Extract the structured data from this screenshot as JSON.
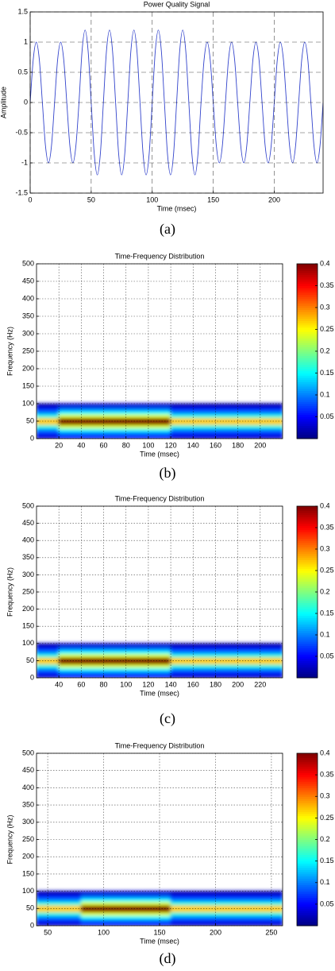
{
  "chart_data": [
    {
      "type": "line",
      "title": "Power Quality Signal",
      "x_label": "Time (msec)",
      "y_label": "Amplitude",
      "caption": "(a)",
      "color": "#3344cc",
      "grid": true,
      "xlim": [
        0,
        240
      ],
      "ylim": [
        -1.5,
        1.5
      ],
      "xticks": [
        0,
        50,
        100,
        150,
        200
      ],
      "yticks": [
        -1.5,
        -1,
        -0.5,
        0,
        0.5,
        1,
        1.5
      ],
      "x": [
        0,
        2.5,
        5,
        7.5,
        10,
        12.5,
        15,
        17.5,
        20,
        22.5,
        25,
        27.5,
        30,
        32.5,
        35,
        37.5,
        40,
        42.5,
        45,
        47.5,
        50,
        52.5,
        55,
        57.5,
        60,
        62.5,
        65,
        67.5,
        70,
        72.5,
        75,
        77.5,
        80,
        82.5,
        85,
        87.5,
        90,
        92.5,
        95,
        97.5,
        100,
        102.5,
        105,
        107.5,
        110,
        112.5,
        115,
        117.5,
        120,
        122.5,
        125,
        127.5,
        130,
        132.5,
        135,
        137.5,
        140,
        142.5,
        145,
        147.5,
        150,
        152.5,
        155,
        157.5,
        160,
        162.5,
        165,
        167.5,
        170,
        172.5,
        175,
        177.5,
        180,
        182.5,
        185,
        187.5,
        190,
        192.5,
        195,
        197.5,
        200,
        202.5,
        205,
        207.5,
        210,
        212.5,
        215,
        217.5,
        220,
        222.5,
        225,
        227.5,
        230,
        232.5,
        235,
        237.5,
        240
      ],
      "values": [
        0,
        0.71,
        1,
        0.71,
        0,
        -0.71,
        -1,
        -0.71,
        0,
        0.71,
        1,
        0.71,
        0,
        -0.71,
        -1,
        -0.71,
        0,
        0.85,
        1.2,
        0.85,
        0,
        -0.85,
        -1.2,
        -0.85,
        0,
        0.85,
        1.2,
        0.85,
        0,
        -0.85,
        -1.2,
        -0.85,
        0,
        0.85,
        1.2,
        0.85,
        0,
        -0.85,
        -1.2,
        -0.85,
        0,
        0.85,
        1.2,
        0.85,
        0,
        -0.85,
        -1.2,
        -0.85,
        0,
        0.85,
        1.2,
        0.85,
        0,
        -0.85,
        -1.2,
        -0.85,
        0,
        0.71,
        1,
        0.71,
        0,
        -0.71,
        -1,
        -0.71,
        0,
        0.71,
        1,
        0.71,
        0,
        -0.71,
        -1,
        -0.71,
        0,
        0.71,
        1,
        0.71,
        0,
        -0.71,
        -1,
        -0.71,
        0,
        0.71,
        1,
        0.71,
        0,
        -0.71,
        -1,
        -0.71,
        0,
        0.71,
        1,
        0.71,
        0,
        -0.71,
        -1,
        -0.71,
        0
      ]
    },
    {
      "type": "heatmap",
      "title": "Time-Frequency Distribution",
      "x_label": "Time (msec)",
      "y_label": "Frequency (Hz)",
      "caption": "(b)",
      "grid": true,
      "xlim": [
        0,
        220
      ],
      "ylim": [
        0,
        500
      ],
      "xticks": [
        20,
        40,
        60,
        80,
        100,
        120,
        140,
        160,
        180,
        200
      ],
      "yticks": [
        0,
        50,
        100,
        150,
        200,
        250,
        300,
        350,
        400,
        450,
        500
      ],
      "clim": [
        0,
        0.4
      ],
      "cticks": [
        0.05,
        0.1,
        0.15,
        0.2,
        0.25,
        0.3,
        0.35,
        0.4
      ],
      "xbins": [
        0,
        20,
        40,
        60,
        80,
        100,
        120,
        140,
        160,
        180,
        200,
        220
      ],
      "ybins": [
        0,
        10,
        20,
        30,
        40,
        50,
        60,
        70,
        80,
        90,
        100
      ],
      "z": [
        [
          0.03,
          0.05,
          0.05,
          0.05,
          0.05,
          0.05,
          0.03,
          0.03,
          0.03,
          0.03,
          0.03
        ],
        [
          0.06,
          0.09,
          0.09,
          0.09,
          0.09,
          0.09,
          0.06,
          0.06,
          0.06,
          0.06,
          0.06
        ],
        [
          0.1,
          0.15,
          0.15,
          0.15,
          0.15,
          0.15,
          0.1,
          0.1,
          0.1,
          0.1,
          0.1
        ],
        [
          0.16,
          0.24,
          0.24,
          0.24,
          0.24,
          0.24,
          0.16,
          0.16,
          0.16,
          0.16,
          0.16
        ],
        [
          0.27,
          0.4,
          0.4,
          0.4,
          0.4,
          0.4,
          0.27,
          0.27,
          0.27,
          0.27,
          0.27
        ],
        [
          0.27,
          0.4,
          0.4,
          0.4,
          0.4,
          0.4,
          0.27,
          0.27,
          0.27,
          0.27,
          0.27
        ],
        [
          0.16,
          0.24,
          0.24,
          0.24,
          0.24,
          0.24,
          0.16,
          0.16,
          0.16,
          0.16,
          0.16
        ],
        [
          0.1,
          0.15,
          0.15,
          0.15,
          0.15,
          0.15,
          0.1,
          0.1,
          0.1,
          0.1,
          0.1
        ],
        [
          0.06,
          0.09,
          0.09,
          0.09,
          0.09,
          0.09,
          0.06,
          0.06,
          0.06,
          0.06,
          0.06
        ],
        [
          0.02,
          0.03,
          0.03,
          0.03,
          0.03,
          0.03,
          0.02,
          0.02,
          0.02,
          0.02,
          0.02
        ]
      ]
    },
    {
      "type": "heatmap",
      "title": "Time-Frequency Distribution",
      "x_label": "Time (msec)",
      "y_label": "Frequency (Hz)",
      "caption": "(c)",
      "grid": true,
      "xlim": [
        20,
        240
      ],
      "ylim": [
        0,
        500
      ],
      "xticks": [
        40,
        60,
        80,
        100,
        120,
        140,
        160,
        180,
        200,
        220
      ],
      "yticks": [
        0,
        50,
        100,
        150,
        200,
        250,
        300,
        350,
        400,
        450,
        500
      ],
      "clim": [
        0,
        0.4
      ],
      "cticks": [
        0.05,
        0.1,
        0.15,
        0.2,
        0.25,
        0.3,
        0.35,
        0.4
      ],
      "xbins": [
        20,
        40,
        60,
        80,
        100,
        120,
        140,
        160,
        180,
        200,
        220,
        240
      ],
      "ybins": [
        0,
        10,
        20,
        30,
        40,
        50,
        60,
        70,
        80,
        90,
        100
      ],
      "z": [
        [
          0.03,
          0.05,
          0.05,
          0.05,
          0.05,
          0.05,
          0.03,
          0.03,
          0.03,
          0.03,
          0.03
        ],
        [
          0.06,
          0.09,
          0.09,
          0.09,
          0.09,
          0.09,
          0.06,
          0.06,
          0.06,
          0.06,
          0.06
        ],
        [
          0.1,
          0.15,
          0.15,
          0.15,
          0.15,
          0.15,
          0.1,
          0.1,
          0.1,
          0.1,
          0.1
        ],
        [
          0.16,
          0.24,
          0.24,
          0.24,
          0.24,
          0.24,
          0.16,
          0.16,
          0.16,
          0.16,
          0.16
        ],
        [
          0.27,
          0.4,
          0.4,
          0.4,
          0.4,
          0.4,
          0.27,
          0.27,
          0.27,
          0.27,
          0.27
        ],
        [
          0.27,
          0.4,
          0.4,
          0.4,
          0.4,
          0.4,
          0.27,
          0.27,
          0.27,
          0.27,
          0.27
        ],
        [
          0.16,
          0.24,
          0.24,
          0.24,
          0.24,
          0.24,
          0.16,
          0.16,
          0.16,
          0.16,
          0.16
        ],
        [
          0.1,
          0.15,
          0.15,
          0.15,
          0.15,
          0.15,
          0.1,
          0.1,
          0.1,
          0.1,
          0.1
        ],
        [
          0.06,
          0.09,
          0.09,
          0.09,
          0.09,
          0.09,
          0.06,
          0.06,
          0.06,
          0.06,
          0.06
        ],
        [
          0.02,
          0.03,
          0.03,
          0.03,
          0.03,
          0.03,
          0.02,
          0.02,
          0.02,
          0.02,
          0.02
        ]
      ]
    },
    {
      "type": "heatmap",
      "title": "Time-Frequency Distribution",
      "x_label": "Time (msec)",
      "y_label": "Frequency (Hz)",
      "caption": "(d)",
      "grid": true,
      "xlim": [
        40,
        260
      ],
      "ylim": [
        0,
        500
      ],
      "xticks": [
        50,
        100,
        150,
        200,
        250
      ],
      "yticks": [
        0,
        50,
        100,
        150,
        200,
        250,
        300,
        350,
        400,
        450,
        500
      ],
      "clim": [
        0,
        0.4
      ],
      "cticks": [
        0.05,
        0.1,
        0.15,
        0.2,
        0.25,
        0.3,
        0.35,
        0.4
      ],
      "xbins": [
        40,
        60,
        80,
        100,
        120,
        140,
        160,
        180,
        200,
        220,
        240,
        260
      ],
      "ybins": [
        0,
        10,
        20,
        30,
        40,
        50,
        60,
        70,
        80,
        90,
        100
      ],
      "z": [
        [
          0.03,
          0.03,
          0.05,
          0.05,
          0.05,
          0.05,
          0.03,
          0.03,
          0.03,
          0.03,
          0.03
        ],
        [
          0.06,
          0.06,
          0.09,
          0.09,
          0.09,
          0.09,
          0.06,
          0.06,
          0.06,
          0.06,
          0.06
        ],
        [
          0.1,
          0.1,
          0.15,
          0.15,
          0.15,
          0.15,
          0.1,
          0.1,
          0.1,
          0.1,
          0.1
        ],
        [
          0.16,
          0.16,
          0.24,
          0.24,
          0.24,
          0.24,
          0.16,
          0.16,
          0.16,
          0.16,
          0.16
        ],
        [
          0.27,
          0.27,
          0.4,
          0.4,
          0.4,
          0.4,
          0.27,
          0.27,
          0.27,
          0.27,
          0.27
        ],
        [
          0.27,
          0.27,
          0.4,
          0.4,
          0.4,
          0.4,
          0.27,
          0.27,
          0.27,
          0.27,
          0.27
        ],
        [
          0.16,
          0.16,
          0.24,
          0.24,
          0.24,
          0.24,
          0.16,
          0.16,
          0.16,
          0.16,
          0.16
        ],
        [
          0.1,
          0.1,
          0.15,
          0.15,
          0.15,
          0.15,
          0.1,
          0.1,
          0.1,
          0.1,
          0.1
        ],
        [
          0.06,
          0.06,
          0.09,
          0.09,
          0.09,
          0.09,
          0.06,
          0.06,
          0.06,
          0.06,
          0.06
        ],
        [
          0.02,
          0.02,
          0.03,
          0.03,
          0.03,
          0.03,
          0.02,
          0.02,
          0.02,
          0.02,
          0.02
        ]
      ]
    }
  ]
}
